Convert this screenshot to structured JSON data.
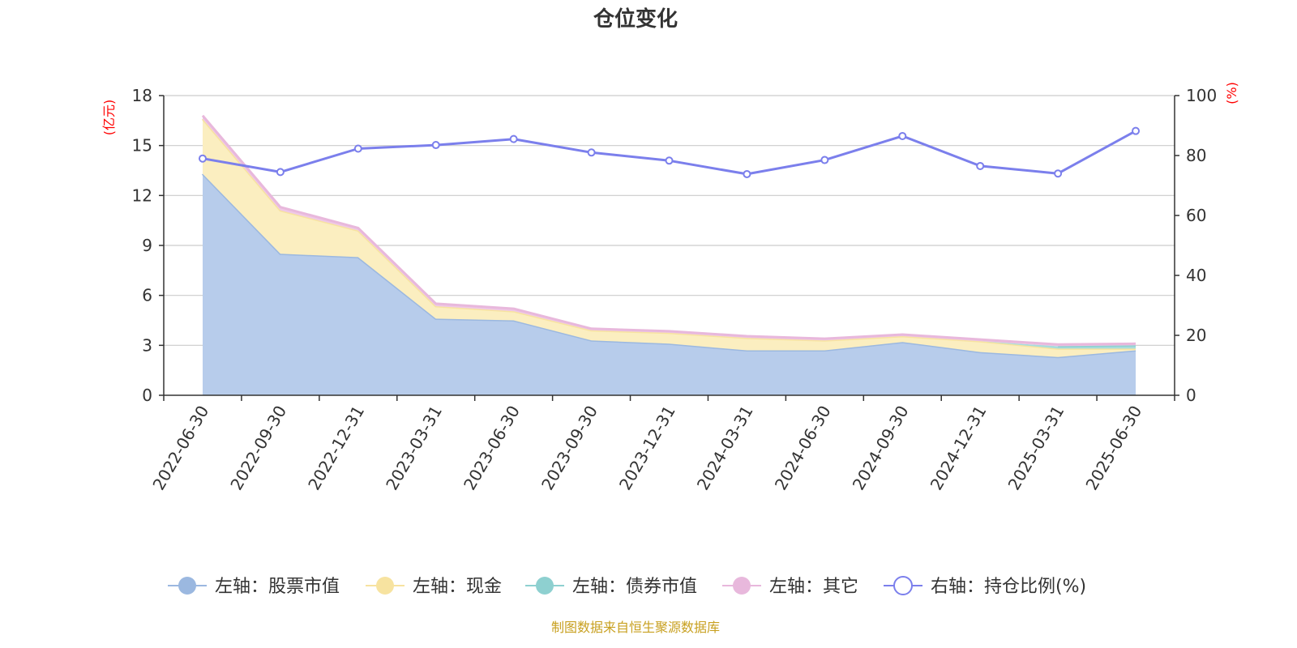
{
  "chart_data": {
    "type": "area",
    "title": "仓位变化",
    "left_unit": "(亿元)",
    "right_unit": "(%)",
    "x": [
      "2022-06-30",
      "2022-09-30",
      "2022-12-31",
      "2023-03-31",
      "2023-06-30",
      "2023-09-30",
      "2023-12-31",
      "2024-03-31",
      "2024-06-30",
      "2024-09-30",
      "2024-12-31",
      "2025-03-31",
      "2025-06-30"
    ],
    "left_axis": {
      "min": 0,
      "max": 18,
      "ticks": [
        0,
        3,
        6,
        9,
        12,
        15,
        18
      ]
    },
    "right_axis": {
      "min": 0,
      "max": 100,
      "ticks": [
        0,
        20,
        40,
        60,
        80,
        100
      ]
    },
    "grid": true,
    "legend_position": "bottom",
    "series": [
      {
        "name": "左轴：股票市值",
        "axis": "left",
        "stack": true,
        "color": "#9bb8e0",
        "fill": "#b7cceb",
        "values": [
          13.3,
          8.5,
          8.3,
          4.6,
          4.5,
          3.3,
          3.1,
          2.7,
          2.7,
          3.2,
          2.6,
          2.3,
          2.7
        ]
      },
      {
        "name": "左轴：现金",
        "axis": "left",
        "stack": true,
        "color": "#f7e3a0",
        "fill": "#fbeec0",
        "values": [
          3.3,
          2.6,
          1.6,
          0.75,
          0.55,
          0.6,
          0.65,
          0.75,
          0.6,
          0.35,
          0.65,
          0.5,
          0.1
        ]
      },
      {
        "name": "左轴：债券市值",
        "axis": "left",
        "stack": true,
        "color": "#8ed0d0",
        "fill": "#a8dcdc",
        "values": [
          0,
          0,
          0,
          0,
          0,
          0,
          0,
          0,
          0,
          0,
          0,
          0.15,
          0.2
        ]
      },
      {
        "name": "左轴：其它",
        "axis": "left",
        "stack": true,
        "color": "#e8b8dc",
        "fill": "#efc8e6",
        "values": [
          0.2,
          0.2,
          0.15,
          0.15,
          0.15,
          0.1,
          0.1,
          0.1,
          0.1,
          0.1,
          0.1,
          0.1,
          0.1
        ]
      },
      {
        "name": "右轴：持仓比例(%)",
        "axis": "right",
        "type": "line",
        "color": "#7b7fec",
        "values": [
          79.0,
          74.5,
          82.3,
          83.5,
          85.5,
          81.0,
          78.3,
          73.8,
          78.5,
          86.5,
          76.5,
          74.0,
          88.2
        ]
      }
    ]
  },
  "source_note": "制图数据来自恒生聚源数据库"
}
